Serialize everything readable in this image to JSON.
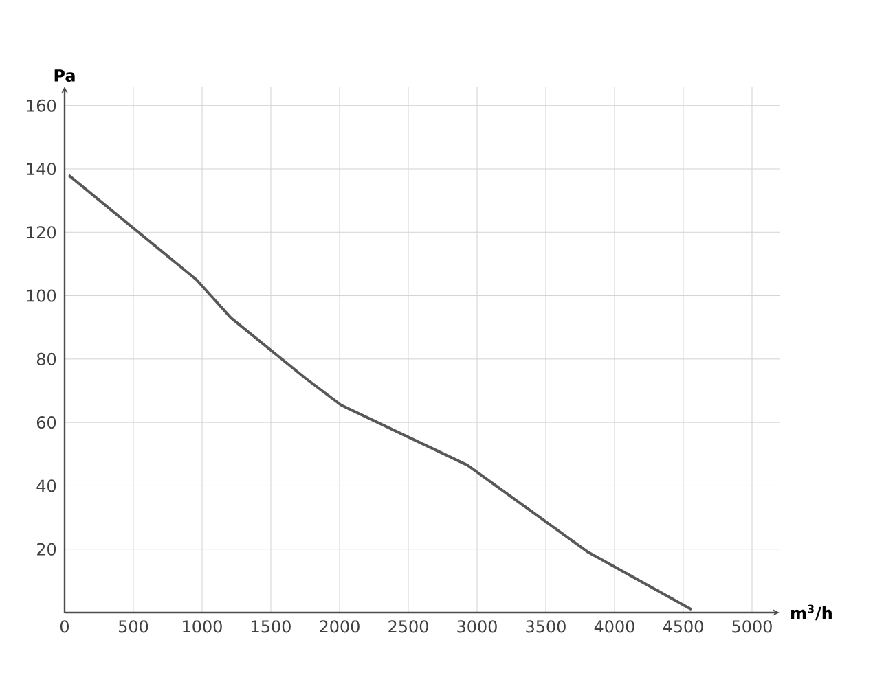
{
  "chart_data": {
    "type": "line",
    "xlabel": "m$^{3}$/h",
    "ylabel": "Pa",
    "x": [
      30,
      960,
      1210,
      1750,
      2010,
      2930,
      3810,
      4560
    ],
    "values": [
      138,
      105,
      93,
      74,
      65.5,
      46.5,
      19,
      1
    ],
    "color": "#58585a",
    "xlim": [
      0,
      5200
    ],
    "ylim": [
      0,
      166
    ],
    "xticks": [
      0,
      500,
      1000,
      1500,
      2000,
      2500,
      3000,
      3500,
      4000,
      4500,
      5000
    ],
    "yticks": [
      20,
      40,
      60,
      80,
      100,
      120,
      140,
      160
    ],
    "grid": true,
    "marker": "none",
    "line_style": "solid"
  }
}
